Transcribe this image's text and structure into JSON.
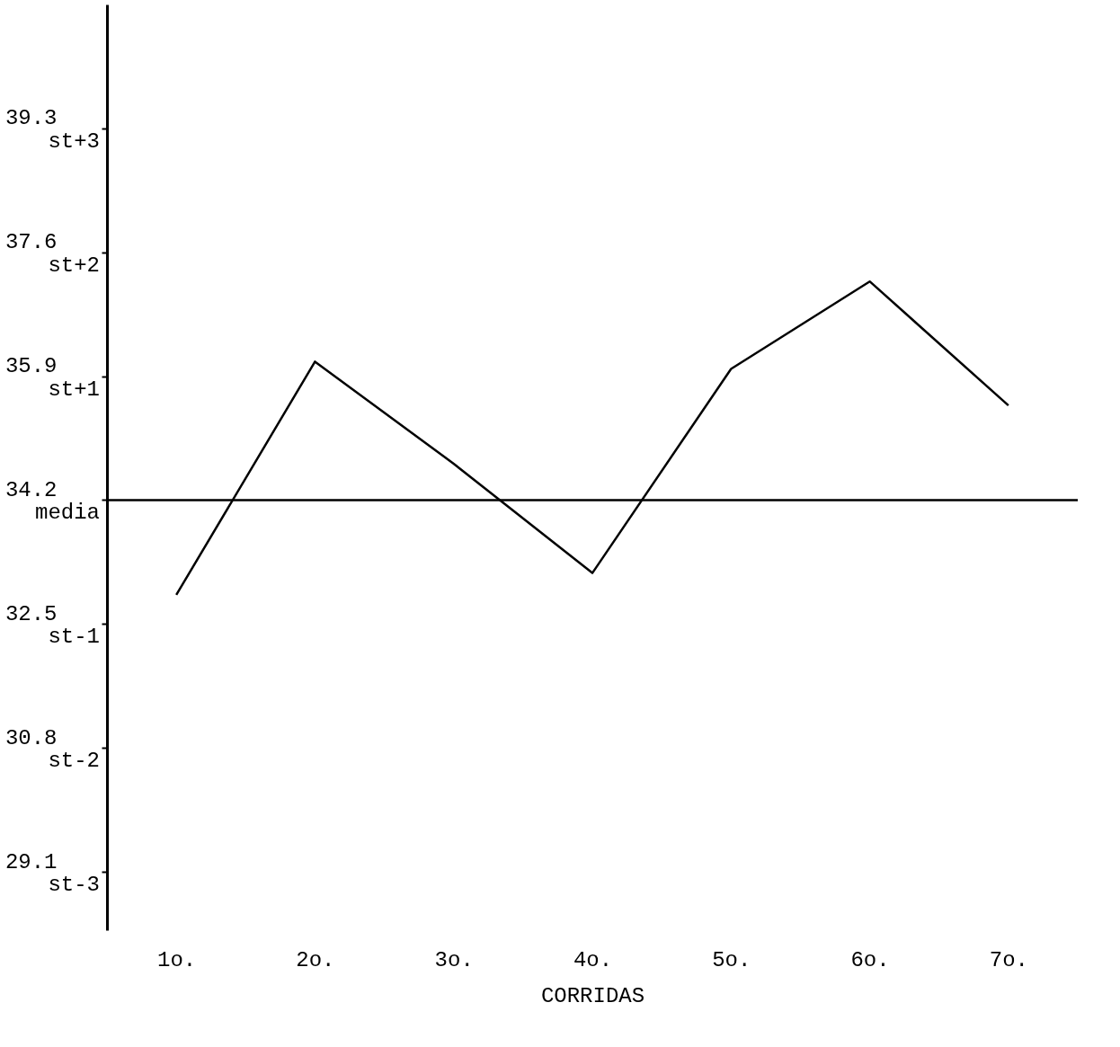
{
  "chart_data": {
    "type": "line",
    "xlabel": "CORRIDAS",
    "categories": [
      "1o.",
      "2o.",
      "3o.",
      "4o.",
      "5o.",
      "6o.",
      "7o."
    ],
    "series": [
      {
        "color": "#000000",
        "values": [
          32.9,
          36.1,
          34.7,
          33.2,
          36.0,
          37.2,
          35.5
        ]
      }
    ],
    "ylim": [
      28.3,
      41.0
    ],
    "yticks": [
      39.3,
      37.6,
      35.9,
      34.2,
      32.5,
      30.8,
      29.1
    ],
    "annotations": [
      "st+3",
      "st+2",
      "st+1",
      "media",
      "st-1",
      "st-2",
      "st-3"
    ],
    "ref_lines": [
      {
        "axis": "y",
        "value": 34.2,
        "color": "#000000",
        "line_style": "solid"
      }
    ],
    "grid": false,
    "marker": "none",
    "line_style": "solid"
  }
}
